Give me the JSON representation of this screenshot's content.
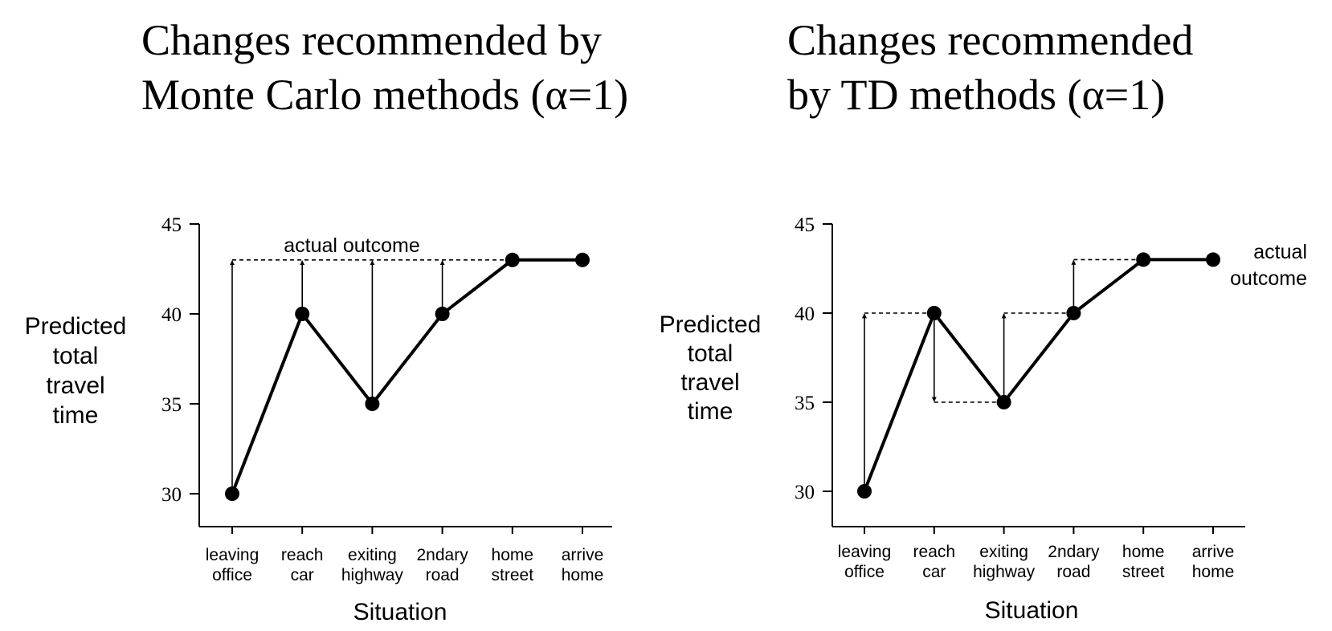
{
  "chart_data": [
    {
      "type": "line",
      "title_lines": [
        "Changes recommended by",
        "Monte Carlo methods (α=1)"
      ],
      "xlabel": "Situation",
      "ylabel_lines": [
        "Predicted",
        "total",
        "travel",
        "time"
      ],
      "categories": [
        [
          "leaving",
          "office"
        ],
        [
          "reach",
          "car"
        ],
        [
          "exiting",
          "highway"
        ],
        [
          "2ndary",
          "road"
        ],
        [
          "home",
          "street"
        ],
        [
          "arrive",
          "home"
        ]
      ],
      "values": [
        30,
        40,
        35,
        40,
        43,
        43
      ],
      "yticks": [
        30,
        35,
        40,
        45
      ],
      "ylim": [
        28,
        45
      ],
      "actual_outcome": 43,
      "annotation_lines": [
        "actual outcome"
      ],
      "annotation_anchor": "top-center",
      "updates": [
        {
          "index": 0,
          "from": 30,
          "to": 43
        },
        {
          "index": 1,
          "from": 40,
          "to": 43
        },
        {
          "index": 2,
          "from": 35,
          "to": 43
        },
        {
          "index": 3,
          "from": 40,
          "to": 43
        }
      ]
    },
    {
      "type": "line",
      "title_lines": [
        "Changes recommended",
        "by TD methods (α=1)"
      ],
      "xlabel": "Situation",
      "ylabel_lines": [
        "Predicted",
        "total",
        "travel",
        "time"
      ],
      "categories": [
        [
          "leaving",
          "office"
        ],
        [
          "reach",
          "car"
        ],
        [
          "exiting",
          "highway"
        ],
        [
          "2ndary",
          "road"
        ],
        [
          "home",
          "street"
        ],
        [
          "arrive",
          "home"
        ]
      ],
      "values": [
        30,
        40,
        35,
        40,
        43,
        43
      ],
      "yticks": [
        30,
        35,
        40,
        45
      ],
      "ylim": [
        28,
        45
      ],
      "actual_outcome": 43,
      "annotation_lines": [
        "actual",
        "outcome"
      ],
      "annotation_anchor": "right",
      "updates": [
        {
          "index": 0,
          "from": 30,
          "to": 40
        },
        {
          "index": 1,
          "from": 40,
          "to": 35
        },
        {
          "index": 2,
          "from": 35,
          "to": 40
        },
        {
          "index": 3,
          "from": 40,
          "to": 43
        }
      ]
    }
  ]
}
